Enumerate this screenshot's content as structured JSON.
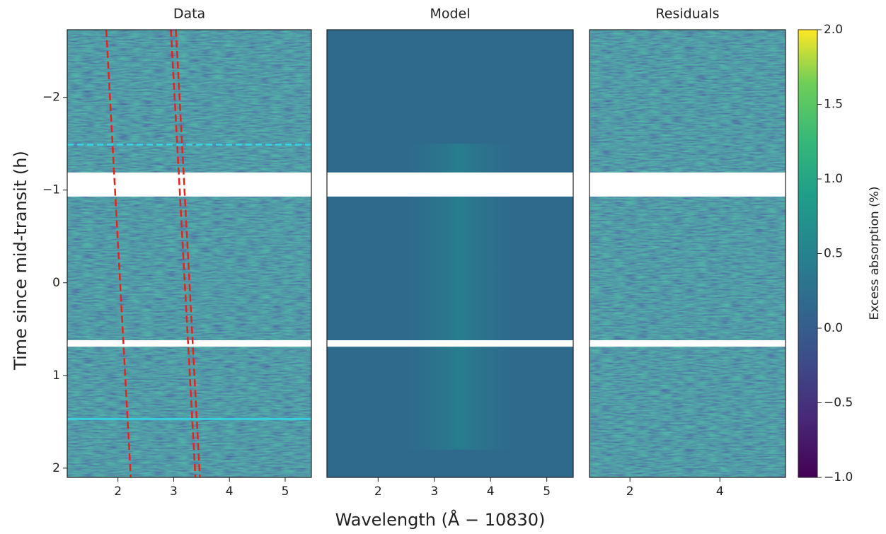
{
  "chart_data": {
    "type": "heatmap",
    "y_label": "Time since mid-transit (h)",
    "x_label": "Wavelength (Å − 10830)",
    "ylim": [
      -2.73,
      2.1
    ],
    "yticks": [
      {
        "value": -2,
        "label": "−2"
      },
      {
        "value": -1,
        "label": "−1"
      },
      0,
      1,
      2
    ],
    "gaps": [
      [
        -1.19,
        -0.93
      ],
      [
        0.62,
        0.69
      ]
    ],
    "panels": [
      {
        "title": "Data",
        "xlim": [
          1.09,
          5.47
        ],
        "xticks": [
          2,
          3,
          4,
          5
        ],
        "lines": [
          {
            "color": "#e8221c",
            "x": [
              1.79,
              2.23
            ],
            "y": [
              -2.73,
              2.1
            ]
          },
          {
            "color": "#e8221c",
            "x": [
              2.95,
              3.39
            ],
            "y": [
              -2.73,
              2.1
            ]
          },
          {
            "color": "#e8221c",
            "x": [
              3.04,
              3.47
            ],
            "y": [
              -2.73,
              2.1
            ]
          }
        ],
        "hlines": [
          {
            "value": -1.49,
            "color": "#33d6e8",
            "dashed": true
          },
          {
            "value": 1.47,
            "color": "#33d6e8",
            "dashed": false
          }
        ]
      },
      {
        "title": "Model",
        "xlim": [
          1.09,
          5.47
        ],
        "xticks": [
          2,
          3,
          4,
          5
        ]
      },
      {
        "title": "Residuals",
        "xlim": [
          1.1,
          5.46
        ],
        "xticks": [
          2,
          4
        ]
      }
    ],
    "colorbar": {
      "label": "Excess absorption (%)",
      "lim": [
        -1,
        2
      ],
      "ticks": [
        {
          "value": 2,
          "label": "2.0"
        },
        1.5,
        {
          "value": 1,
          "label": "1.0"
        },
        0.5,
        {
          "value": 0,
          "label": "0.0"
        },
        {
          "value": -0.5,
          "label": "−0.5"
        },
        {
          "value": -1,
          "label": "−1.0"
        }
      ]
    }
  }
}
